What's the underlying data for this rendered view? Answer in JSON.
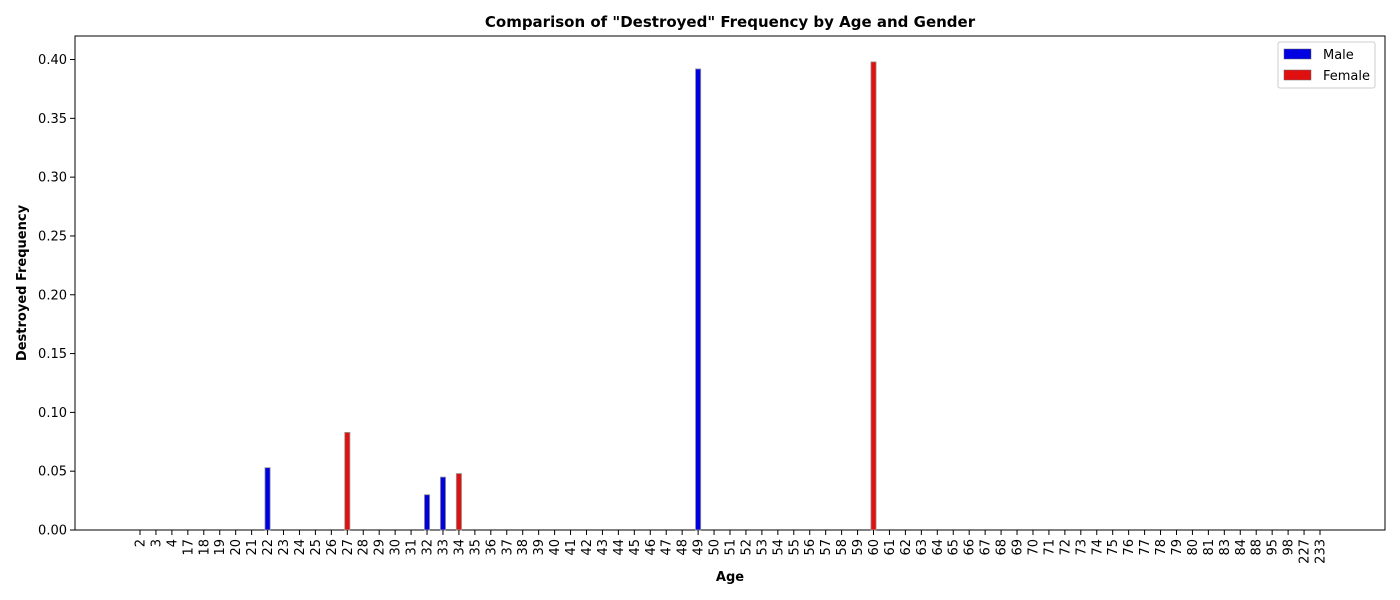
{
  "chart_data": {
    "type": "bar",
    "title": "Comparison of \"Destroyed\" Frequency by Age and Gender",
    "xlabel": "Age",
    "ylabel": "Destroyed Frequency",
    "ylim": [
      0,
      0.42
    ],
    "yticks": [
      "0.00",
      "0.05",
      "0.10",
      "0.15",
      "0.20",
      "0.25",
      "0.30",
      "0.35",
      "0.40"
    ],
    "grid": false,
    "legend_position": "top-right",
    "categories": [
      "2",
      "3",
      "4",
      "17",
      "18",
      "19",
      "20",
      "21",
      "22",
      "23",
      "24",
      "25",
      "26",
      "27",
      "28",
      "29",
      "30",
      "31",
      "32",
      "33",
      "34",
      "35",
      "36",
      "37",
      "38",
      "39",
      "40",
      "41",
      "42",
      "43",
      "44",
      "45",
      "46",
      "47",
      "48",
      "49",
      "50",
      "51",
      "52",
      "53",
      "54",
      "55",
      "56",
      "57",
      "58",
      "59",
      "60",
      "61",
      "62",
      "63",
      "64",
      "65",
      "66",
      "67",
      "68",
      "69",
      "70",
      "71",
      "72",
      "73",
      "74",
      "75",
      "76",
      "77",
      "78",
      "79",
      "80",
      "81",
      "83",
      "84",
      "88",
      "95",
      "98",
      "227",
      "233"
    ],
    "series": [
      {
        "name": "Male",
        "color": "#0000e0",
        "values": [
          0,
          0,
          0,
          0,
          0,
          0,
          0,
          0,
          0.053,
          0,
          0,
          0,
          0,
          0,
          0,
          0,
          0,
          0,
          0.03,
          0.045,
          0,
          0,
          0,
          0,
          0,
          0,
          0,
          0,
          0,
          0,
          0,
          0,
          0,
          0,
          0,
          0.392,
          0,
          0,
          0,
          0,
          0,
          0,
          0,
          0,
          0,
          0,
          0,
          0,
          0,
          0,
          0,
          0,
          0,
          0,
          0,
          0,
          0,
          0,
          0,
          0,
          0,
          0,
          0,
          0,
          0,
          0,
          0,
          0,
          0,
          0,
          0,
          0,
          0,
          0,
          0
        ]
      },
      {
        "name": "Female",
        "color": "#e01010",
        "values": [
          0,
          0,
          0,
          0,
          0,
          0,
          0,
          0,
          0,
          0,
          0,
          0,
          0,
          0.083,
          0,
          0,
          0,
          0,
          0,
          0,
          0.048,
          0,
          0,
          0,
          0,
          0,
          0,
          0,
          0,
          0,
          0,
          0,
          0,
          0,
          0,
          0,
          0,
          0,
          0,
          0,
          0,
          0,
          0,
          0,
          0,
          0,
          0.398,
          0,
          0,
          0,
          0,
          0,
          0,
          0,
          0,
          0,
          0,
          0,
          0,
          0,
          0,
          0,
          0,
          0,
          0,
          0,
          0,
          0,
          0,
          0,
          0,
          0,
          0,
          0,
          0
        ]
      }
    ]
  }
}
